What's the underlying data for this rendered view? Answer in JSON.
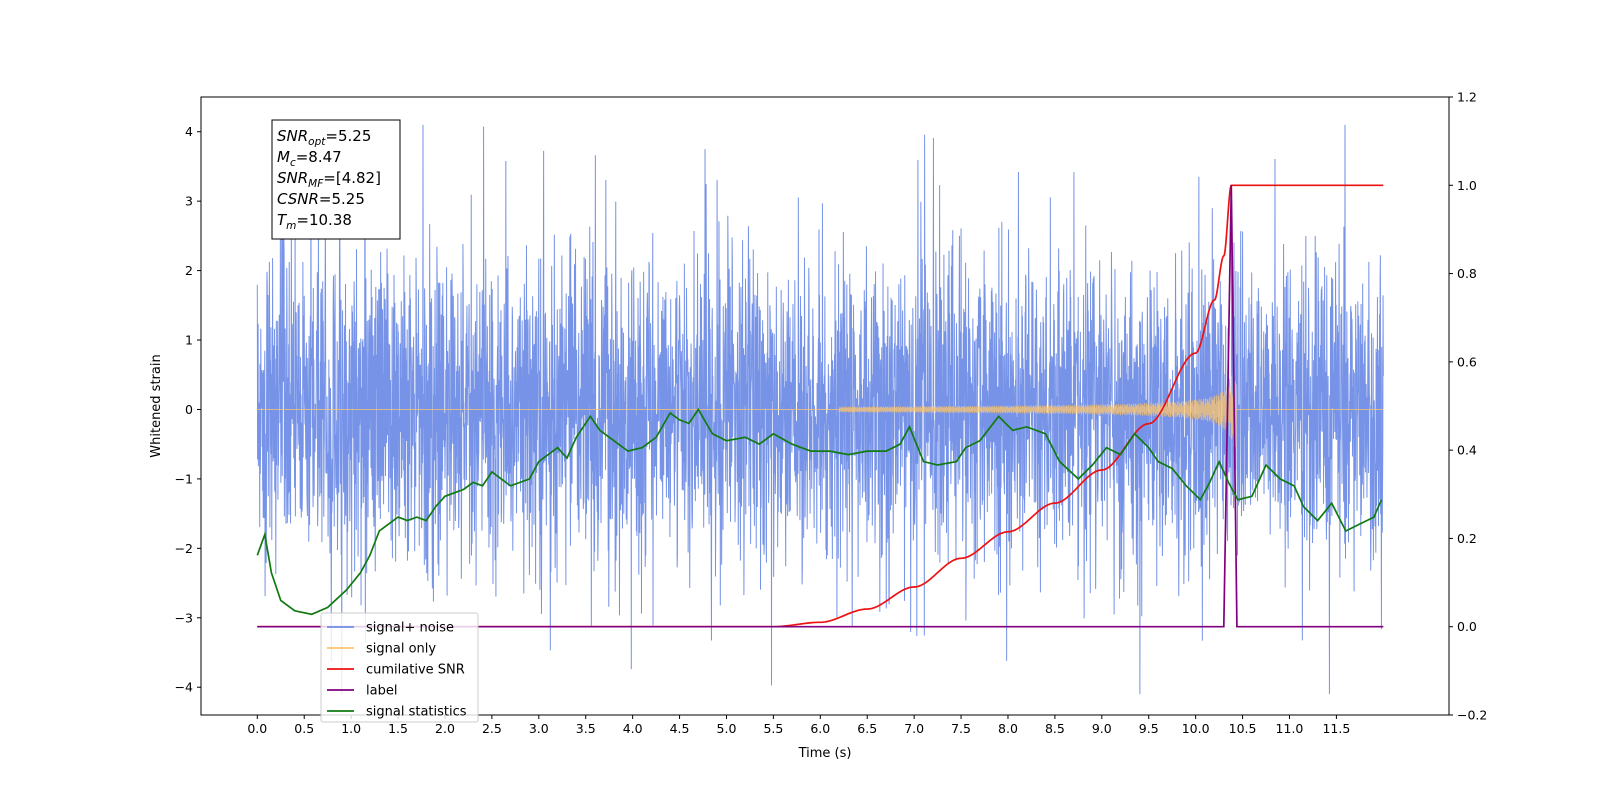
{
  "chart_data": {
    "type": "line",
    "xlabel": "Time (s)",
    "ylabel": "Whitened strain",
    "ylabel_right": "",
    "xlim": [
      -0.6,
      12.7
    ],
    "ylim": [
      -4.4,
      4.5
    ],
    "ylim_right": [
      -0.2,
      1.2
    ],
    "x_ticks": [
      "0.0",
      "0.5",
      "1.0",
      "1.5",
      "2.0",
      "2.5",
      "3.0",
      "3.5",
      "4.0",
      "4.5",
      "5.0",
      "5.5",
      "6.0",
      "6.5",
      "7.0",
      "7.5",
      "8.0",
      "8.5",
      "9.0",
      "9.5",
      "10.0",
      "10.5",
      "11.0",
      "11.5"
    ],
    "y_ticks_left": [
      "4",
      "3",
      "2",
      "1",
      "0",
      "−1",
      "−2",
      "−3",
      "−4"
    ],
    "y_ticks_right": [
      "1.2",
      "1.0",
      "0.8",
      "0.6",
      "0.4",
      "0.2",
      "0.0",
      "−0.2"
    ],
    "legend_position": "lower-left",
    "grid": false,
    "annotation": {
      "lines": [
        {
          "symbol": "SNR",
          "sub": "opt",
          "value": "=5.25"
        },
        {
          "symbol": "M",
          "sub": "c",
          "value": "=8.47"
        },
        {
          "symbol": "SNR",
          "sub": "MF",
          "value": "=[4.82]"
        },
        {
          "symbol": "CSNR",
          "sub": "",
          "value": "=5.25"
        },
        {
          "symbol": "T",
          "sub": "m",
          "value": "=10.38"
        }
      ]
    },
    "series": [
      {
        "name": "signal+ noise",
        "color": "#6f8de6",
        "axis": "left",
        "description": "noise band, amplitude about ±2 with spikes to ±4, t from 0 to 12"
      },
      {
        "name": "signal only",
        "color": "#ffc66b",
        "axis": "left",
        "description": "chirp from t≈6 growing to ±0.5 at t≈10.38, merging then zero"
      },
      {
        "name": "cumilative SNR",
        "color": "#ee1111",
        "axis": "right",
        "x": [
          0,
          5.5,
          6.0,
          6.5,
          7.0,
          7.5,
          8.0,
          8.5,
          9.0,
          9.5,
          10.0,
          10.2,
          10.3,
          10.38,
          12.0
        ],
        "y": [
          0,
          0.0,
          0.01,
          0.04,
          0.09,
          0.155,
          0.215,
          0.28,
          0.355,
          0.46,
          0.62,
          0.74,
          0.84,
          1.0,
          1.0
        ]
      },
      {
        "name": "label",
        "color": "#800080",
        "axis": "right",
        "x": [
          0,
          10.3,
          10.38,
          10.44,
          12.0
        ],
        "y": [
          0,
          0,
          1.0,
          0,
          0
        ]
      },
      {
        "name": "signal statistics",
        "color": "#117a11",
        "axis": "left",
        "x": [
          0.0,
          0.08,
          0.15,
          0.25,
          0.4,
          0.58,
          0.75,
          0.95,
          1.1,
          1.2,
          1.3,
          1.5,
          1.6,
          1.7,
          1.8,
          1.9,
          2.0,
          2.1,
          2.2,
          2.3,
          2.4,
          2.5,
          2.6,
          2.7,
          2.8,
          2.9,
          3.0,
          3.1,
          3.2,
          3.3,
          3.4,
          3.55,
          3.65,
          3.8,
          3.95,
          4.1,
          4.25,
          4.4,
          4.5,
          4.6,
          4.7,
          4.85,
          5.0,
          5.2,
          5.35,
          5.5,
          5.7,
          5.9,
          6.1,
          6.3,
          6.5,
          6.7,
          6.85,
          6.95,
          7.1,
          7.25,
          7.45,
          7.55,
          7.7,
          7.9,
          8.05,
          8.2,
          8.4,
          8.55,
          8.75,
          8.9,
          9.05,
          9.2,
          9.35,
          9.5,
          9.6,
          9.75,
          9.9,
          10.05,
          10.15,
          10.25,
          10.35,
          10.45,
          10.6,
          10.75,
          10.9,
          11.05,
          11.15,
          11.3,
          11.45,
          11.6,
          11.75,
          11.9,
          11.98
        ],
        "y": [
          -2.1,
          -1.8,
          -2.35,
          -2.75,
          -2.9,
          -2.95,
          -2.85,
          -2.6,
          -2.35,
          -2.1,
          -1.75,
          -1.55,
          -1.6,
          -1.55,
          -1.6,
          -1.4,
          -1.25,
          -1.2,
          -1.15,
          -1.05,
          -1.1,
          -0.9,
          -1.0,
          -1.1,
          -1.05,
          -1.0,
          -0.75,
          -0.65,
          -0.55,
          -0.7,
          -0.4,
          -0.1,
          -0.3,
          -0.45,
          -0.6,
          -0.55,
          -0.4,
          -0.05,
          -0.15,
          -0.2,
          0.0,
          -0.35,
          -0.45,
          -0.4,
          -0.5,
          -0.35,
          -0.5,
          -0.6,
          -0.6,
          -0.65,
          -0.6,
          -0.6,
          -0.5,
          -0.25,
          -0.75,
          -0.8,
          -0.75,
          -0.55,
          -0.45,
          -0.1,
          -0.3,
          -0.25,
          -0.35,
          -0.75,
          -1.0,
          -0.8,
          -0.55,
          -0.65,
          -0.35,
          -0.55,
          -0.75,
          -0.85,
          -1.1,
          -1.3,
          -1.05,
          -0.75,
          -1.05,
          -1.3,
          -1.25,
          -0.8,
          -1.0,
          -1.1,
          -1.4,
          -1.6,
          -1.35,
          -1.75,
          -1.65,
          -1.55,
          -1.3
        ]
      }
    ]
  }
}
